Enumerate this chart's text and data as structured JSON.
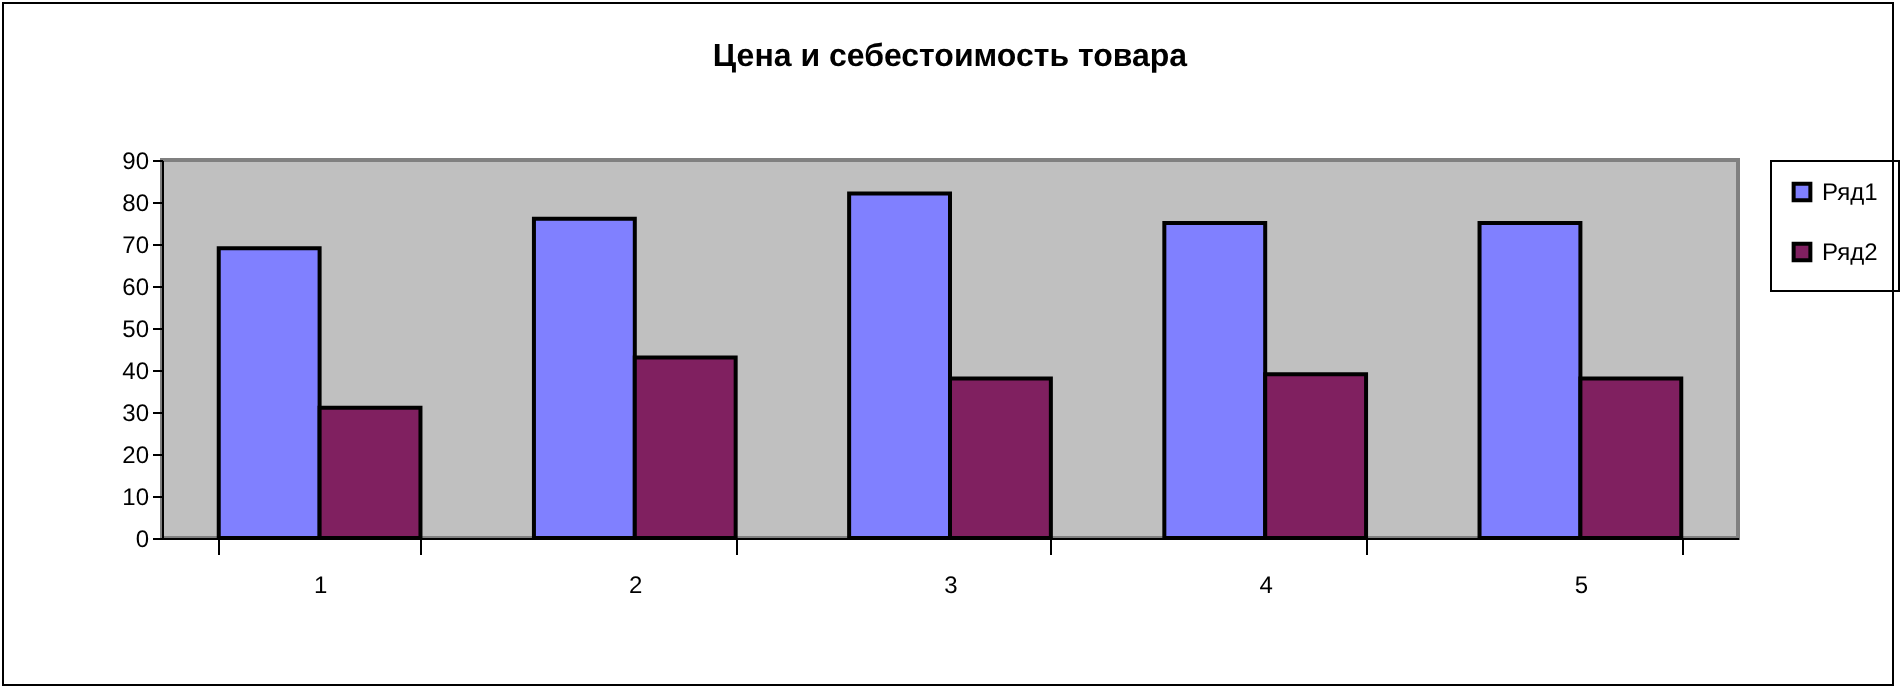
{
  "chart_data": {
    "type": "bar",
    "title": "Цена и себестоимость товара",
    "categories": [
      "1",
      "2",
      "3",
      "4",
      "5"
    ],
    "series": [
      {
        "name": "Ряд1",
        "color": "#8080ff",
        "values": [
          69,
          76,
          82,
          75,
          75
        ]
      },
      {
        "name": "Ряд2",
        "color": "#802060",
        "values": [
          31,
          43,
          38,
          39,
          38
        ]
      }
    ],
    "ylim": [
      0,
      90
    ],
    "yticks": [
      0,
      10,
      20,
      30,
      40,
      50,
      60,
      70,
      80,
      90
    ],
    "grid": false,
    "legend": "right"
  }
}
